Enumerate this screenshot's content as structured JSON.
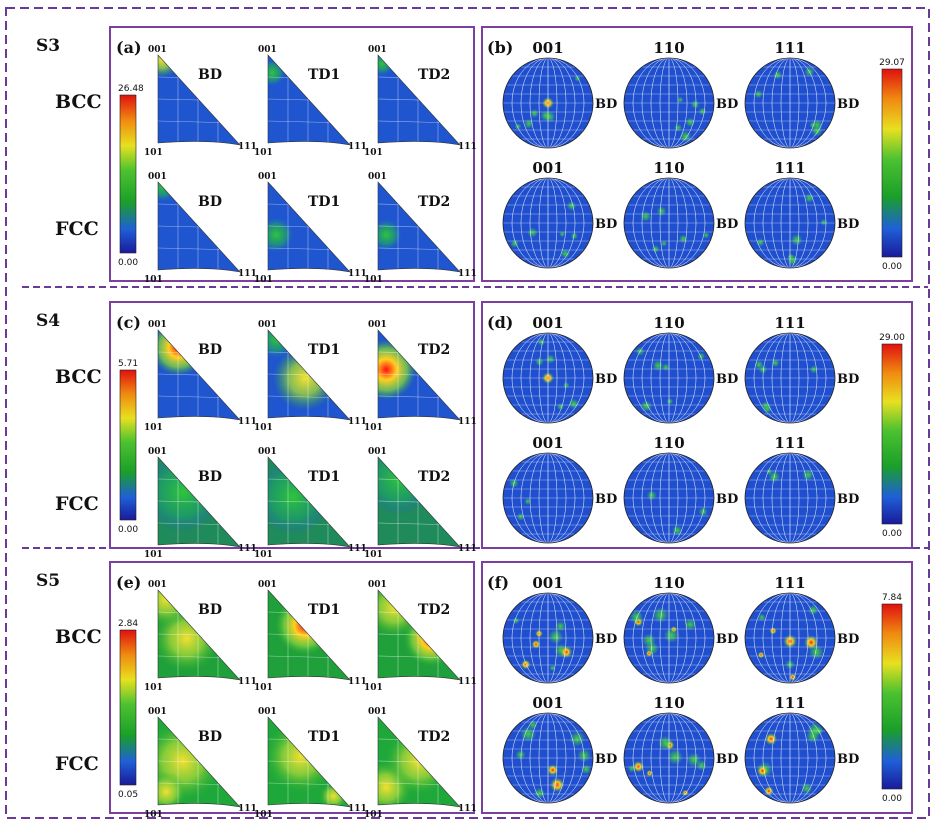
{
  "rows": [
    {
      "sample": "S3",
      "phases": [
        "BCC",
        "FCC"
      ],
      "ipf": {
        "panel_label": "(a)",
        "scale": {
          "max": "26.48",
          "min": "0.00"
        },
        "directions": [
          "BD",
          "TD1",
          "TD2"
        ],
        "corners": {
          "top": "001",
          "left": "101",
          "right": "111"
        }
      },
      "pf": {
        "panel_label": "(b)",
        "scale": {
          "max": "29.07",
          "min": "0.00"
        },
        "planes": [
          "001",
          "110",
          "111"
        ],
        "ref": "BD"
      }
    },
    {
      "sample": "S4",
      "phases": [
        "BCC",
        "FCC"
      ],
      "ipf": {
        "panel_label": "(c)",
        "scale": {
          "max": "5.71",
          "min": "0.00"
        },
        "directions": [
          "BD",
          "TD1",
          "TD2"
        ],
        "corners": {
          "top": "001",
          "left": "101",
          "right": "111"
        }
      },
      "pf": {
        "panel_label": "(d)",
        "scale": {
          "max": "29.00",
          "min": "0.00"
        },
        "planes": [
          "001",
          "110",
          "111"
        ],
        "ref": "BD"
      }
    },
    {
      "sample": "S5",
      "phases": [
        "BCC",
        "FCC"
      ],
      "ipf": {
        "panel_label": "(e)",
        "scale": {
          "max": "2.84",
          "min": "0.05"
        },
        "directions": [
          "BD",
          "TD1",
          "TD2"
        ],
        "corners": {
          "top": "001",
          "left": "101",
          "right": "111"
        }
      },
      "pf": {
        "panel_label": "(f)",
        "scale": {
          "max": "7.84",
          "min": "0.00"
        },
        "planes": [
          "001",
          "110",
          "111"
        ],
        "ref": "BD"
      }
    }
  ],
  "colors": {
    "frame": "#7b3fa0",
    "dash": "#6a3a9a",
    "low": "#1b2fbf",
    "mid": "#1fa81f",
    "high": "#e02020"
  }
}
